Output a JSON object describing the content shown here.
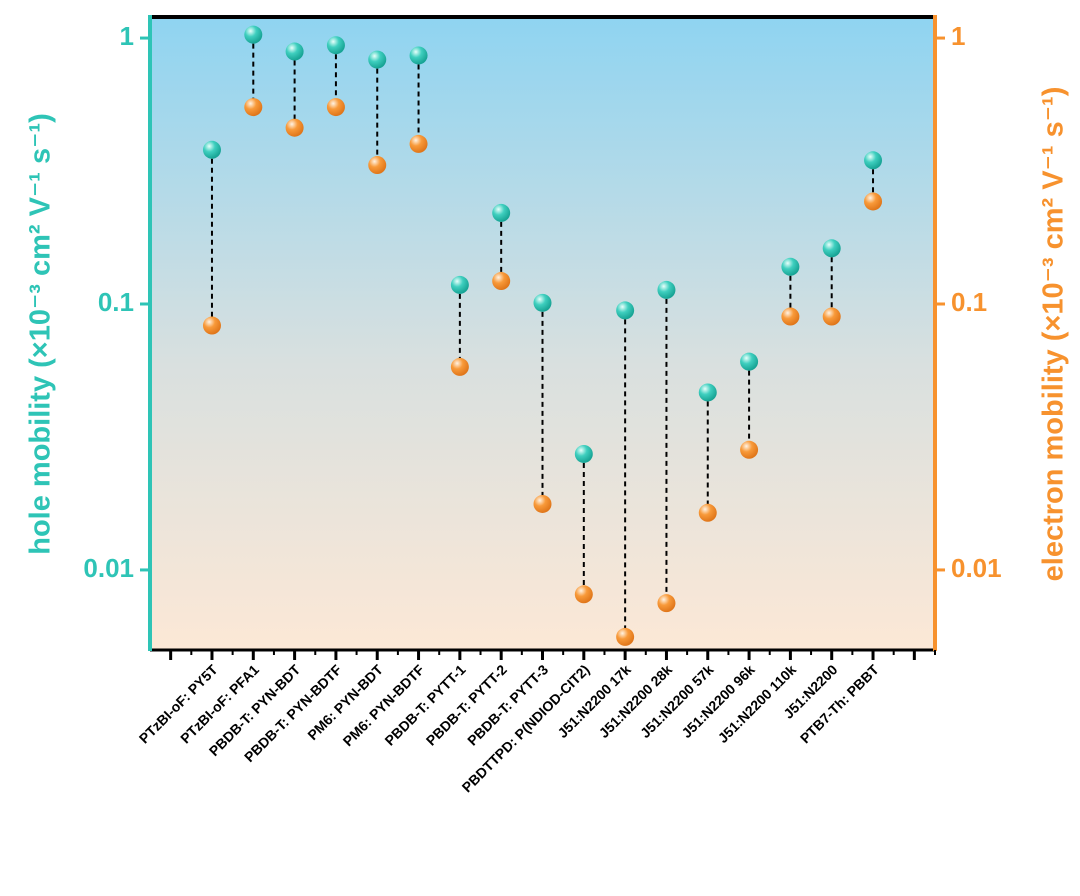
{
  "chart_data": {
    "type": "dumbbell",
    "ylabel": "hole mobility (×10⁻³ cm² V⁻¹ s⁻¹)",
    "y2label": "electron mobility (×10⁻³  cm² V⁻¹ s⁻¹)",
    "log_scale": true,
    "categories": [
      null,
      "PTzBI-oF: PY5T",
      "PTzBI-oF: PFA1",
      "PBDB-T: PYN-BDT",
      "PBDB-T: PYN-BDTF",
      "PM6: PYN-BDT",
      "PM6: PYN-BDTF",
      "PBDB-T: PYTT-1",
      "PBDB-T: PYTT-2",
      "PBDB-T: PYTT-3",
      "PBDTTPD: P(NDIOD-CIT2)",
      "J51:N2200 17k",
      "J51:N2200 28k",
      "J51:N2200 57k",
      "J51:N2200 96k",
      "J51:N2200 110k",
      "J51:N2200",
      "PTB7-Th: PBBT",
      null
    ],
    "series": [
      {
        "color": "#2ec4b6",
        "values": [
          null,
          0.38,
          1.03,
          0.89,
          0.94,
          0.83,
          0.86,
          0.118,
          0.22,
          0.101,
          0.0273,
          0.0946,
          0.113,
          0.0465,
          0.0607,
          0.138,
          0.162,
          0.347,
          null
        ]
      },
      {
        "color": "#f7922e",
        "axis": "y2",
        "values": [
          null,
          0.083,
          0.55,
          0.46,
          0.55,
          0.333,
          0.4,
          0.058,
          0.122,
          0.0177,
          0.0081,
          0.0056,
          0.0075,
          0.0164,
          0.0283,
          0.0897,
          0.0897,
          0.243,
          null
        ]
      }
    ],
    "ylim": [
      0.005,
      1.2
    ],
    "yticks": [
      0.01,
      0.1,
      1
    ],
    "y2lim": [
      0.005,
      1.2
    ],
    "y2ticks": [
      0.01,
      0.1,
      1
    ]
  }
}
